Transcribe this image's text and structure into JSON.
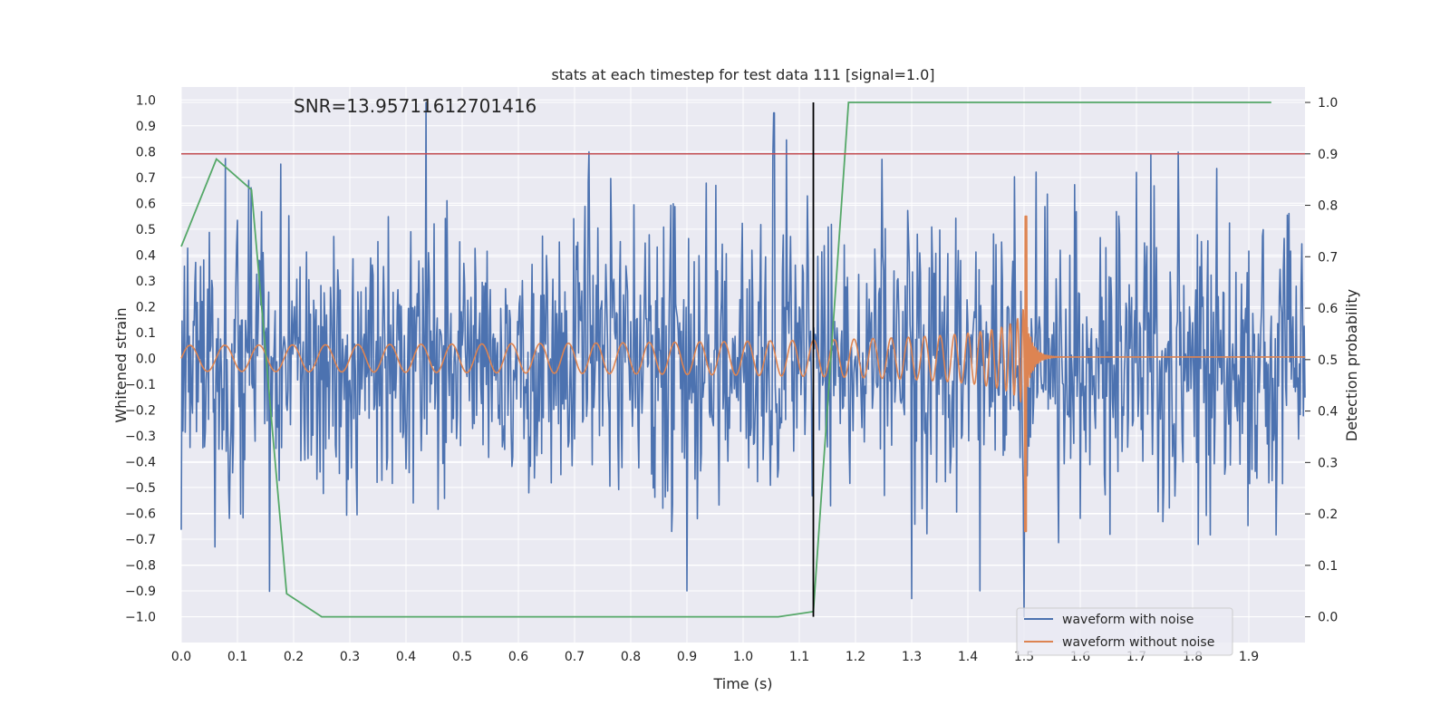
{
  "chart_data": {
    "type": "line",
    "title": "stats at each timestep for test data 111 [signal=1.0]",
    "annotation": "SNR=13.95711612701416",
    "xlabel": "Time (s)",
    "ylabel_left": "Whitened strain",
    "ylabel_right": "Detection probability",
    "xlim": [
      0.0,
      2.0
    ],
    "ylim_left": [
      -1.1,
      1.05
    ],
    "ylim_right": [
      -0.05,
      1.03
    ],
    "x_ticks": [
      "0.0",
      "0.1",
      "0.2",
      "0.3",
      "0.4",
      "0.5",
      "0.6",
      "0.7",
      "0.8",
      "0.9",
      "1.0",
      "1.1",
      "1.2",
      "1.3",
      "1.4",
      "1.5",
      "1.6",
      "1.7",
      "1.8",
      "1.9"
    ],
    "y_ticks_left": [
      "1.0",
      "0.9",
      "0.8",
      "0.7",
      "0.6",
      "0.5",
      "0.4",
      "0.3",
      "0.2",
      "0.1",
      "0.0",
      "−0.1",
      "−0.2",
      "−0.3",
      "−0.4",
      "−0.5",
      "−0.6",
      "−0.7",
      "−0.8",
      "−0.9",
      "−1.0"
    ],
    "y_ticks_right": [
      "1.0",
      "0.9",
      "0.8",
      "0.7",
      "0.6",
      "0.5",
      "0.4",
      "0.3",
      "0.2",
      "0.1",
      "0.0"
    ],
    "threshold": 0.9,
    "marker_time": 1.125,
    "series": [
      {
        "name": "waveform with noise",
        "axis": "left",
        "color": "#4c72b0",
        "kind": "noise",
        "std": 0.28,
        "peaks": [
          [
            0.06,
            -0.73
          ],
          [
            0.125,
            0.66
          ],
          [
            0.9,
            -0.9
          ],
          [
            1.055,
            0.95
          ],
          [
            1.3,
            -0.93
          ],
          [
            1.5,
            -1.0
          ],
          [
            1.81,
            -0.72
          ]
        ]
      },
      {
        "name": "waveform without noise",
        "axis": "left",
        "color": "#dd8452",
        "kind": "chirp",
        "base_amp": 0.05,
        "base_freq": 16,
        "merger_time": 1.505,
        "peak_amp": 0.55,
        "min_amp": -0.67
      },
      {
        "name": "detection probability",
        "axis": "right",
        "color": "#55a868",
        "kind": "line",
        "x": [
          0.0,
          0.0625,
          0.125,
          0.1875,
          0.25,
          1.0625,
          1.125,
          1.1875,
          1.25,
          1.94
        ],
        "y": [
          0.72,
          0.89,
          0.83,
          0.045,
          0.0,
          0.0,
          0.01,
          1.0,
          1.0,
          1.0
        ]
      }
    ],
    "legend": [
      "waveform with noise",
      "waveform without noise"
    ],
    "legend_position": "lower-right",
    "colors": {
      "background": "#eaeaf2",
      "grid": "#ffffff",
      "threshold": "#c44e52",
      "marker": "#000000"
    }
  }
}
